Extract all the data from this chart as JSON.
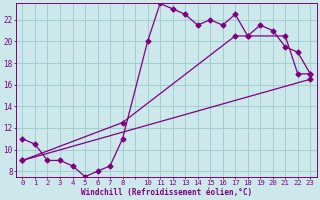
{
  "xlabel": "Windchill (Refroidissement éolien,°C)",
  "bg_color": "#cce8ea",
  "line_color": "#800080",
  "grid_color": "#99cccc",
  "ylim": [
    7.5,
    23.5
  ],
  "xlim": [
    -0.5,
    23.5
  ],
  "yticks": [
    8,
    10,
    12,
    14,
    16,
    18,
    20,
    22
  ],
  "xtick_positions": [
    0,
    1,
    2,
    3,
    4,
    5,
    6,
    7,
    8,
    9,
    10,
    11,
    12,
    13,
    14,
    15,
    16,
    17,
    18,
    19,
    20,
    21,
    22,
    23
  ],
  "xtick_labels": [
    "0",
    "1",
    "2",
    "3",
    "4",
    "5",
    "6",
    "7",
    "8",
    "",
    "10",
    "11",
    "12",
    "13",
    "14",
    "15",
    "16",
    "17",
    "18",
    "19",
    "20",
    "21",
    "22",
    "23"
  ],
  "curve1_x": [
    0,
    1,
    2,
    3,
    4,
    5,
    6,
    7,
    8,
    10,
    11,
    12,
    13,
    14,
    15,
    16,
    17,
    18,
    19,
    20,
    21,
    22,
    23
  ],
  "curve1_y": [
    11.0,
    10.5,
    9.0,
    9.0,
    8.5,
    7.5,
    8.0,
    8.5,
    11.0,
    20.0,
    23.5,
    23.0,
    22.5,
    21.5,
    22.0,
    21.5,
    22.5,
    20.5,
    21.5,
    21.0,
    19.5,
    19.0,
    17.0
  ],
  "curve2_x": [
    0,
    8,
    17,
    18,
    21,
    22,
    23
  ],
  "curve2_y": [
    9.0,
    12.5,
    20.5,
    20.5,
    20.5,
    17.0,
    17.0
  ],
  "curve3_x": [
    0,
    23
  ],
  "curve3_y": [
    9.0,
    16.5
  ]
}
